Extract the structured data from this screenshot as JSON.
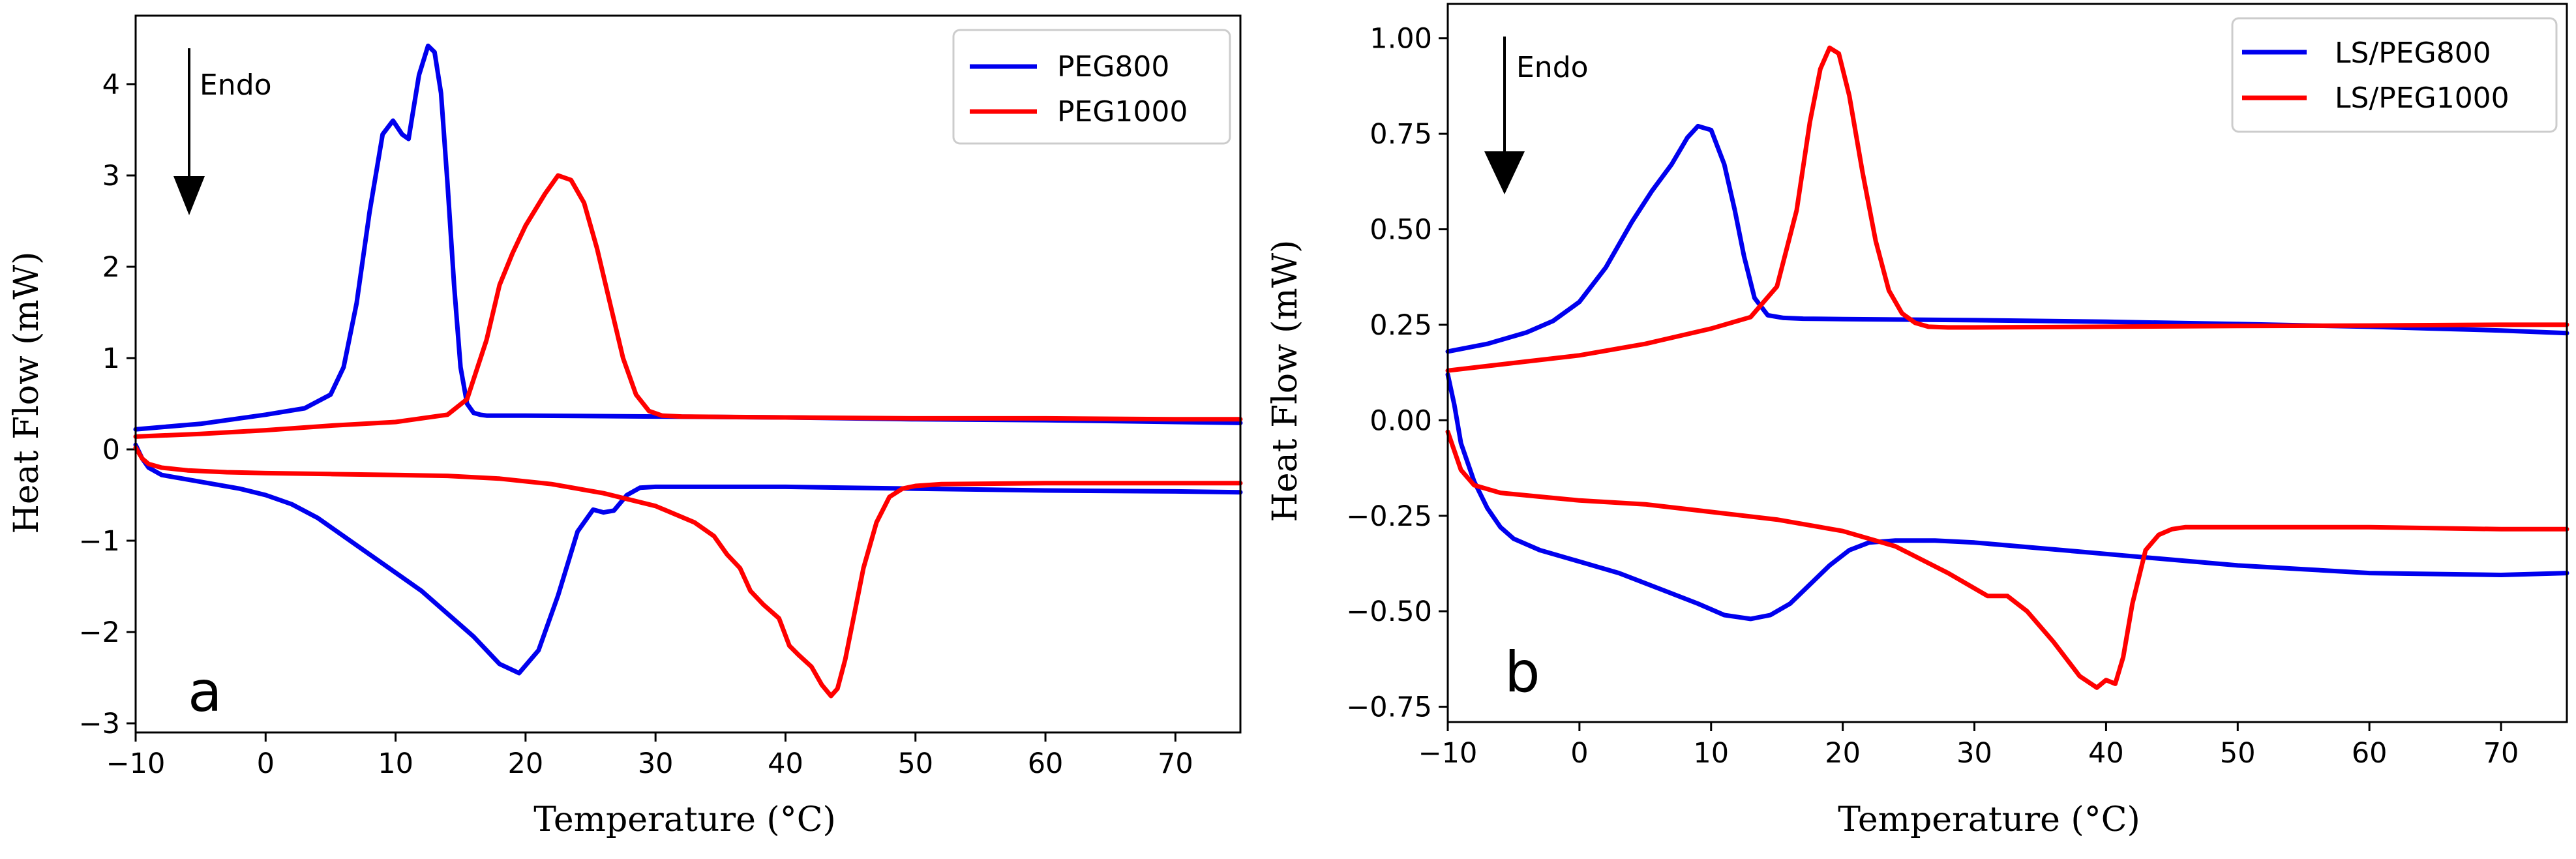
{
  "chart_data": [
    {
      "type": "line",
      "panel_letter": "a",
      "xlabel": "Temperature (°C)",
      "ylabel": "Heat Flow (mW)",
      "xlim": [
        -10,
        75
      ],
      "ylim": [
        -3.1,
        4.75
      ],
      "xticks": [
        -10,
        0,
        10,
        20,
        30,
        40,
        50,
        60,
        70
      ],
      "xtick_labels": [
        "−10",
        "0",
        "10",
        "20",
        "30",
        "40",
        "50",
        "60",
        "70"
      ],
      "yticks": [
        -3,
        -2,
        -1,
        0,
        1,
        2,
        3,
        4
      ],
      "ytick_labels": [
        "−3",
        "−2",
        "−1",
        "0",
        "1",
        "2",
        "3",
        "4"
      ],
      "annotation": {
        "text": "Endo",
        "direction": "down"
      },
      "legend": {
        "position": "top-right",
        "entries": [
          "PEG800",
          "PEG1000"
        ]
      },
      "series": [
        {
          "name": "PEG800",
          "color": "#0000ee",
          "segment": "heating",
          "x": [
            -10,
            -5,
            0,
            3,
            5,
            6,
            7,
            8,
            9,
            9.8,
            10.5,
            11,
            11.8,
            12.5,
            13,
            13.5,
            14,
            14.5,
            15,
            15.5,
            16,
            16.5,
            17,
            18,
            20,
            30,
            40,
            50,
            60,
            70,
            75
          ],
          "y": [
            0.22,
            0.28,
            0.38,
            0.45,
            0.6,
            0.9,
            1.6,
            2.6,
            3.45,
            3.6,
            3.45,
            3.4,
            4.1,
            4.42,
            4.35,
            3.9,
            2.9,
            1.8,
            0.9,
            0.5,
            0.4,
            0.38,
            0.37,
            0.37,
            0.37,
            0.36,
            0.35,
            0.33,
            0.32,
            0.3,
            0.29
          ]
        },
        {
          "name": "PEG800",
          "color": "#0000ee",
          "segment": "cooling",
          "x": [
            -10,
            -9.5,
            -9,
            -8,
            -6,
            -4,
            -2,
            0,
            2,
            4,
            6,
            8,
            10,
            12,
            14,
            16,
            18,
            19.5,
            21,
            22.5,
            24,
            25.2,
            26,
            26.8,
            27.8,
            28.8,
            30,
            40,
            50,
            60,
            70,
            75
          ],
          "y": [
            0.05,
            -0.1,
            -0.2,
            -0.28,
            -0.33,
            -0.38,
            -0.43,
            -0.5,
            -0.6,
            -0.75,
            -0.95,
            -1.15,
            -1.35,
            -1.55,
            -1.8,
            -2.05,
            -2.35,
            -2.45,
            -2.2,
            -1.6,
            -0.9,
            -0.66,
            -0.69,
            -0.67,
            -0.5,
            -0.42,
            -0.41,
            -0.41,
            -0.43,
            -0.45,
            -0.46,
            -0.47
          ]
        },
        {
          "name": "PEG1000",
          "color": "#ff0000",
          "segment": "heating",
          "x": [
            -10,
            -5,
            0,
            5,
            10,
            14,
            15.5,
            17,
            18,
            19,
            20,
            21.5,
            22.5,
            23.5,
            24.5,
            25.5,
            26.5,
            27.5,
            28.5,
            29.5,
            30.5,
            32,
            40,
            50,
            60,
            70,
            75
          ],
          "y": [
            0.14,
            0.17,
            0.21,
            0.26,
            0.3,
            0.38,
            0.55,
            1.2,
            1.8,
            2.15,
            2.45,
            2.8,
            3.0,
            2.95,
            2.7,
            2.2,
            1.6,
            1.0,
            0.6,
            0.42,
            0.37,
            0.36,
            0.35,
            0.34,
            0.34,
            0.33,
            0.33
          ],
          "peak_label": ""
        },
        {
          "name": "PEG1000",
          "color": "#ff0000",
          "segment": "cooling",
          "x": [
            -10,
            -9.5,
            -9,
            -8,
            -6,
            -3,
            0,
            5,
            10,
            14,
            18,
            22,
            26,
            30,
            33,
            34.5,
            35.5,
            36.5,
            37.3,
            38.3,
            39.5,
            40.3,
            41,
            42,
            42.8,
            43.5,
            44,
            44.6,
            45.3,
            46,
            47,
            48,
            49,
            50,
            52,
            60,
            70,
            75
          ],
          "y": [
            0.02,
            -0.1,
            -0.16,
            -0.2,
            -0.23,
            -0.25,
            -0.26,
            -0.27,
            -0.28,
            -0.29,
            -0.32,
            -0.38,
            -0.48,
            -0.62,
            -0.8,
            -0.95,
            -1.15,
            -1.3,
            -1.55,
            -1.7,
            -1.85,
            -2.15,
            -2.25,
            -2.38,
            -2.58,
            -2.7,
            -2.62,
            -2.3,
            -1.8,
            -1.3,
            -0.8,
            -0.52,
            -0.43,
            -0.4,
            -0.38,
            -0.37,
            -0.37,
            -0.37
          ]
        }
      ]
    },
    {
      "type": "line",
      "panel_letter": "b",
      "xlabel": "Temperature (°C)",
      "ylabel": "Heat Flow (mW)",
      "xlim": [
        -10,
        75
      ],
      "ylim": [
        -0.79,
        1.09
      ],
      "xticks": [
        -10,
        0,
        10,
        20,
        30,
        40,
        50,
        60,
        70
      ],
      "xtick_labels": [
        "−10",
        "0",
        "10",
        "20",
        "30",
        "40",
        "50",
        "60",
        "70"
      ],
      "yticks": [
        -0.75,
        -0.5,
        -0.25,
        0.0,
        0.25,
        0.5,
        0.75,
        1.0
      ],
      "ytick_labels": [
        "−0.75",
        "−0.50",
        "−0.25",
        "0.00",
        "0.25",
        "0.50",
        "0.75",
        "1.00"
      ],
      "annotation": {
        "text": "Endo",
        "direction": "down"
      },
      "legend": {
        "position": "top-right",
        "entries": [
          "LS/PEG800",
          "LS/PEG1000"
        ]
      },
      "series": [
        {
          "name": "LS/PEG800",
          "color": "#0000ee",
          "segment": "heating",
          "x": [
            -10,
            -7,
            -4,
            -2,
            0,
            2,
            4,
            5.5,
            7,
            8.2,
            9,
            10,
            11,
            11.8,
            12.5,
            13.3,
            14.3,
            15.5,
            17,
            20,
            30,
            40,
            50,
            60,
            70,
            75
          ],
          "y": [
            0.18,
            0.2,
            0.23,
            0.26,
            0.31,
            0.4,
            0.52,
            0.6,
            0.67,
            0.74,
            0.77,
            0.76,
            0.67,
            0.55,
            0.43,
            0.32,
            0.275,
            0.268,
            0.266,
            0.265,
            0.262,
            0.258,
            0.252,
            0.245,
            0.235,
            0.228
          ]
        },
        {
          "name": "LS/PEG800",
          "color": "#0000ee",
          "segment": "cooling",
          "x": [
            -10,
            -9.5,
            -9,
            -8,
            -7,
            -6,
            -5,
            -3,
            0,
            3,
            6,
            9,
            11,
            13,
            14.5,
            16,
            17.5,
            19,
            20.5,
            22,
            24,
            27,
            30,
            35,
            40,
            45,
            50,
            55,
            60,
            70,
            75
          ],
          "y": [
            0.12,
            0.04,
            -0.06,
            -0.16,
            -0.23,
            -0.28,
            -0.31,
            -0.34,
            -0.37,
            -0.4,
            -0.44,
            -0.48,
            -0.51,
            -0.52,
            -0.51,
            -0.48,
            -0.43,
            -0.38,
            -0.34,
            -0.32,
            -0.315,
            -0.315,
            -0.32,
            -0.335,
            -0.35,
            -0.365,
            -0.38,
            -0.39,
            -0.4,
            -0.405,
            -0.4
          ]
        },
        {
          "name": "LS/PEG1000",
          "color": "#ff0000",
          "segment": "heating",
          "x": [
            -10,
            -5,
            0,
            5,
            10,
            13,
            15,
            16.5,
            17.5,
            18.3,
            19,
            19.7,
            20.5,
            21.5,
            22.5,
            23.5,
            24.5,
            25.5,
            26.5,
            28,
            30,
            40,
            50,
            60,
            70,
            75
          ],
          "y": [
            0.13,
            0.15,
            0.17,
            0.2,
            0.24,
            0.27,
            0.35,
            0.55,
            0.78,
            0.92,
            0.975,
            0.96,
            0.85,
            0.65,
            0.47,
            0.34,
            0.28,
            0.255,
            0.245,
            0.243,
            0.243,
            0.245,
            0.247,
            0.248,
            0.25,
            0.25
          ]
        },
        {
          "name": "LS/PEG1000",
          "color": "#ff0000",
          "segment": "cooling",
          "x": [
            -10,
            -9.5,
            -9,
            -8,
            -6,
            -3,
            0,
            5,
            10,
            15,
            20,
            24,
            28,
            31,
            32.5,
            34,
            36,
            38,
            39.3,
            40,
            40.7,
            41.3,
            42,
            43,
            44,
            45,
            46,
            47,
            50,
            60,
            70,
            75
          ],
          "y": [
            -0.03,
            -0.08,
            -0.13,
            -0.17,
            -0.19,
            -0.2,
            -0.21,
            -0.22,
            -0.24,
            -0.26,
            -0.29,
            -0.33,
            -0.4,
            -0.46,
            -0.46,
            -0.5,
            -0.58,
            -0.67,
            -0.7,
            -0.68,
            -0.69,
            -0.62,
            -0.48,
            -0.34,
            -0.3,
            -0.285,
            -0.28,
            -0.28,
            -0.28,
            -0.28,
            -0.285,
            -0.285
          ]
        }
      ]
    }
  ]
}
